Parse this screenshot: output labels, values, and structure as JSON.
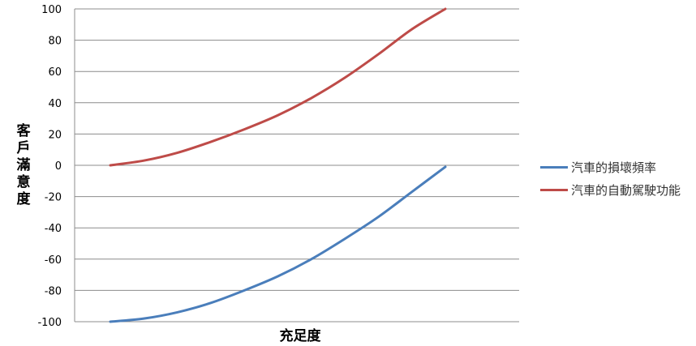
{
  "chart_data": {
    "type": "line",
    "title": "",
    "xlabel": "充足度",
    "ylabel": "客戶滿意度",
    "ylim": [
      -100,
      100
    ],
    "yticks": [
      100,
      80,
      60,
      40,
      20,
      0,
      -20,
      -40,
      -60,
      -80,
      -100
    ],
    "grid": true,
    "legend_position": "right",
    "x": [
      0,
      0.1,
      0.2,
      0.3,
      0.4,
      0.5,
      0.6,
      0.7,
      0.8,
      0.9,
      1.0
    ],
    "series": [
      {
        "name": "汽車的損壞頻率",
        "color": "#4a7ebb",
        "values": [
          -100,
          -98,
          -94,
          -88,
          -80,
          -71,
          -60,
          -47,
          -33,
          -17,
          -1
        ]
      },
      {
        "name": "汽車的自動駕駛功能",
        "color": "#be4b48",
        "values": [
          0,
          3,
          8,
          15,
          23,
          32,
          43,
          56,
          71,
          87,
          100
        ]
      }
    ]
  }
}
